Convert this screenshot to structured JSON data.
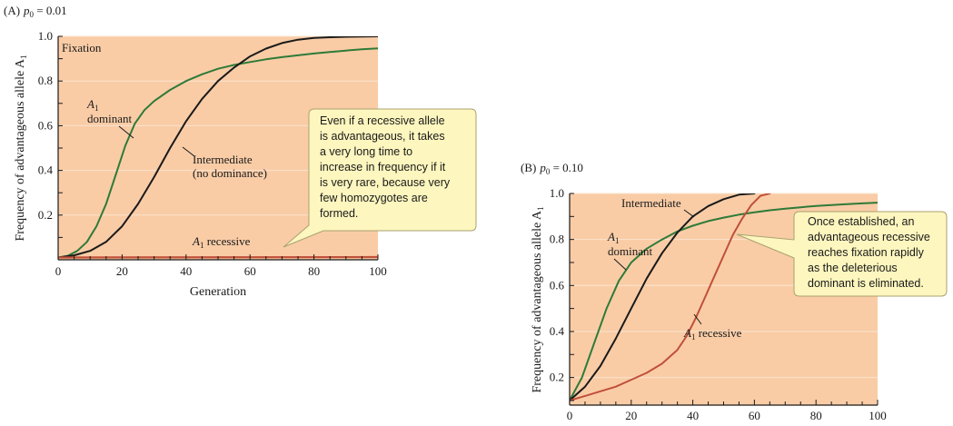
{
  "colors": {
    "plot_bg": "#F9CCA6",
    "grid": "#FBE3CE",
    "green": "#2E7A38",
    "black": "#1A1A1A",
    "red": "#C0503A",
    "callout_bg": "#FDF6BE",
    "callout_border": "#A9A270"
  },
  "chart_data": [
    {
      "type": "line",
      "panel_label": "(A)",
      "p0_label": "p",
      "p0_sub": "0",
      "p0_value": " = 0.01",
      "ylabel": "Frequency of advantageous allele A",
      "ylabel_sub": "1",
      "xlabel": "Generation",
      "xlim": [
        0,
        100
      ],
      "ylim": [
        0,
        1
      ],
      "x_ticks": [
        "0",
        "20",
        "40",
        "60",
        "80",
        "100"
      ],
      "y_ticks": [
        "0.2",
        "0.4",
        "0.6",
        "0.8",
        "1.0"
      ],
      "grid": "none",
      "annotations": {
        "fixation": "Fixation",
        "dominant_a": "A",
        "dominant_sub": "1",
        "dominant_word": "dominant",
        "intermediate_1": "Intermediate",
        "intermediate_2": "(no dominance)",
        "recessive_a": "A",
        "recessive_sub": "1",
        "recessive_word": " recessive"
      },
      "callout": [
        "Even if a recessive allele",
        "is advantageous, it takes",
        "a very long time to",
        "increase in frequency if it",
        "is very rare, because very",
        "few homozygotes are",
        "formed."
      ],
      "series": [
        {
          "name": "A1 dominant",
          "color": "green",
          "x": [
            0,
            3,
            6,
            9,
            12,
            15,
            18,
            21,
            24,
            27,
            30,
            35,
            40,
            45,
            50,
            55,
            60,
            65,
            70,
            75,
            80,
            85,
            90,
            95,
            100
          ],
          "y": [
            0.01,
            0.018,
            0.04,
            0.08,
            0.15,
            0.25,
            0.38,
            0.51,
            0.61,
            0.67,
            0.71,
            0.76,
            0.8,
            0.83,
            0.855,
            0.872,
            0.885,
            0.897,
            0.907,
            0.915,
            0.923,
            0.93,
            0.936,
            0.942,
            0.946
          ]
        },
        {
          "name": "Intermediate (no dominance)",
          "color": "black",
          "x": [
            0,
            5,
            10,
            15,
            20,
            25,
            30,
            35,
            40,
            45,
            50,
            55,
            60,
            65,
            70,
            75,
            80,
            85,
            90,
            95,
            100
          ],
          "y": [
            0.01,
            0.02,
            0.04,
            0.08,
            0.15,
            0.25,
            0.37,
            0.5,
            0.62,
            0.72,
            0.8,
            0.86,
            0.91,
            0.945,
            0.97,
            0.985,
            0.993,
            0.996,
            0.998,
            0.999,
            1.0
          ]
        },
        {
          "name": "A1 recessive",
          "color": "red",
          "x": [
            0,
            100
          ],
          "y": [
            0.01,
            0.012
          ]
        }
      ]
    },
    {
      "type": "line",
      "panel_label": "(B)",
      "p0_label": "p",
      "p0_sub": "0",
      "p0_value": " = 0.10",
      "ylabel": "Frequency of advantageous allele A",
      "ylabel_sub": "1",
      "xlim": [
        0,
        100
      ],
      "ylim": [
        0.08,
        1
      ],
      "x_ticks": [
        "0",
        "20",
        "40",
        "60",
        "80",
        "100"
      ],
      "y_ticks": [
        "0.2",
        "0.4",
        "0.6",
        "0.8",
        "1.0"
      ],
      "grid": "none",
      "annotations": {
        "intermediate": "Intermediate",
        "dominant_a": "A",
        "dominant_sub": "1",
        "dominant_word": "dominant",
        "recessive_a": "A",
        "recessive_sub": "1",
        "recessive_word": " recessive"
      },
      "callout": [
        "Once established, an",
        "advantageous recessive",
        "reaches fixation rapidly",
        "as the deleterious",
        "dominant is eliminated."
      ],
      "series": [
        {
          "name": "A1 dominant",
          "color": "green",
          "x": [
            0,
            4,
            8,
            12,
            16,
            20,
            25,
            30,
            35,
            40,
            45,
            50,
            55,
            60,
            65,
            70,
            75,
            80,
            85,
            90,
            95,
            100
          ],
          "y": [
            0.1,
            0.2,
            0.35,
            0.5,
            0.62,
            0.7,
            0.76,
            0.8,
            0.835,
            0.86,
            0.88,
            0.895,
            0.908,
            0.918,
            0.927,
            0.934,
            0.94,
            0.946,
            0.95,
            0.954,
            0.957,
            0.96
          ]
        },
        {
          "name": "Intermediate",
          "color": "black",
          "x": [
            0,
            5,
            10,
            15,
            20,
            25,
            30,
            35,
            40,
            45,
            50,
            55,
            60
          ],
          "y": [
            0.1,
            0.16,
            0.25,
            0.37,
            0.5,
            0.63,
            0.74,
            0.83,
            0.9,
            0.945,
            0.975,
            0.995,
            1.0
          ]
        },
        {
          "name": "A1 recessive",
          "color": "red",
          "x": [
            0,
            5,
            10,
            15,
            20,
            25,
            30,
            35,
            38,
            41,
            44,
            47,
            50,
            53,
            56,
            59,
            62,
            65
          ],
          "y": [
            0.1,
            0.12,
            0.14,
            0.16,
            0.19,
            0.22,
            0.26,
            0.32,
            0.38,
            0.46,
            0.55,
            0.64,
            0.73,
            0.82,
            0.89,
            0.95,
            0.99,
            1.0
          ]
        }
      ]
    }
  ]
}
